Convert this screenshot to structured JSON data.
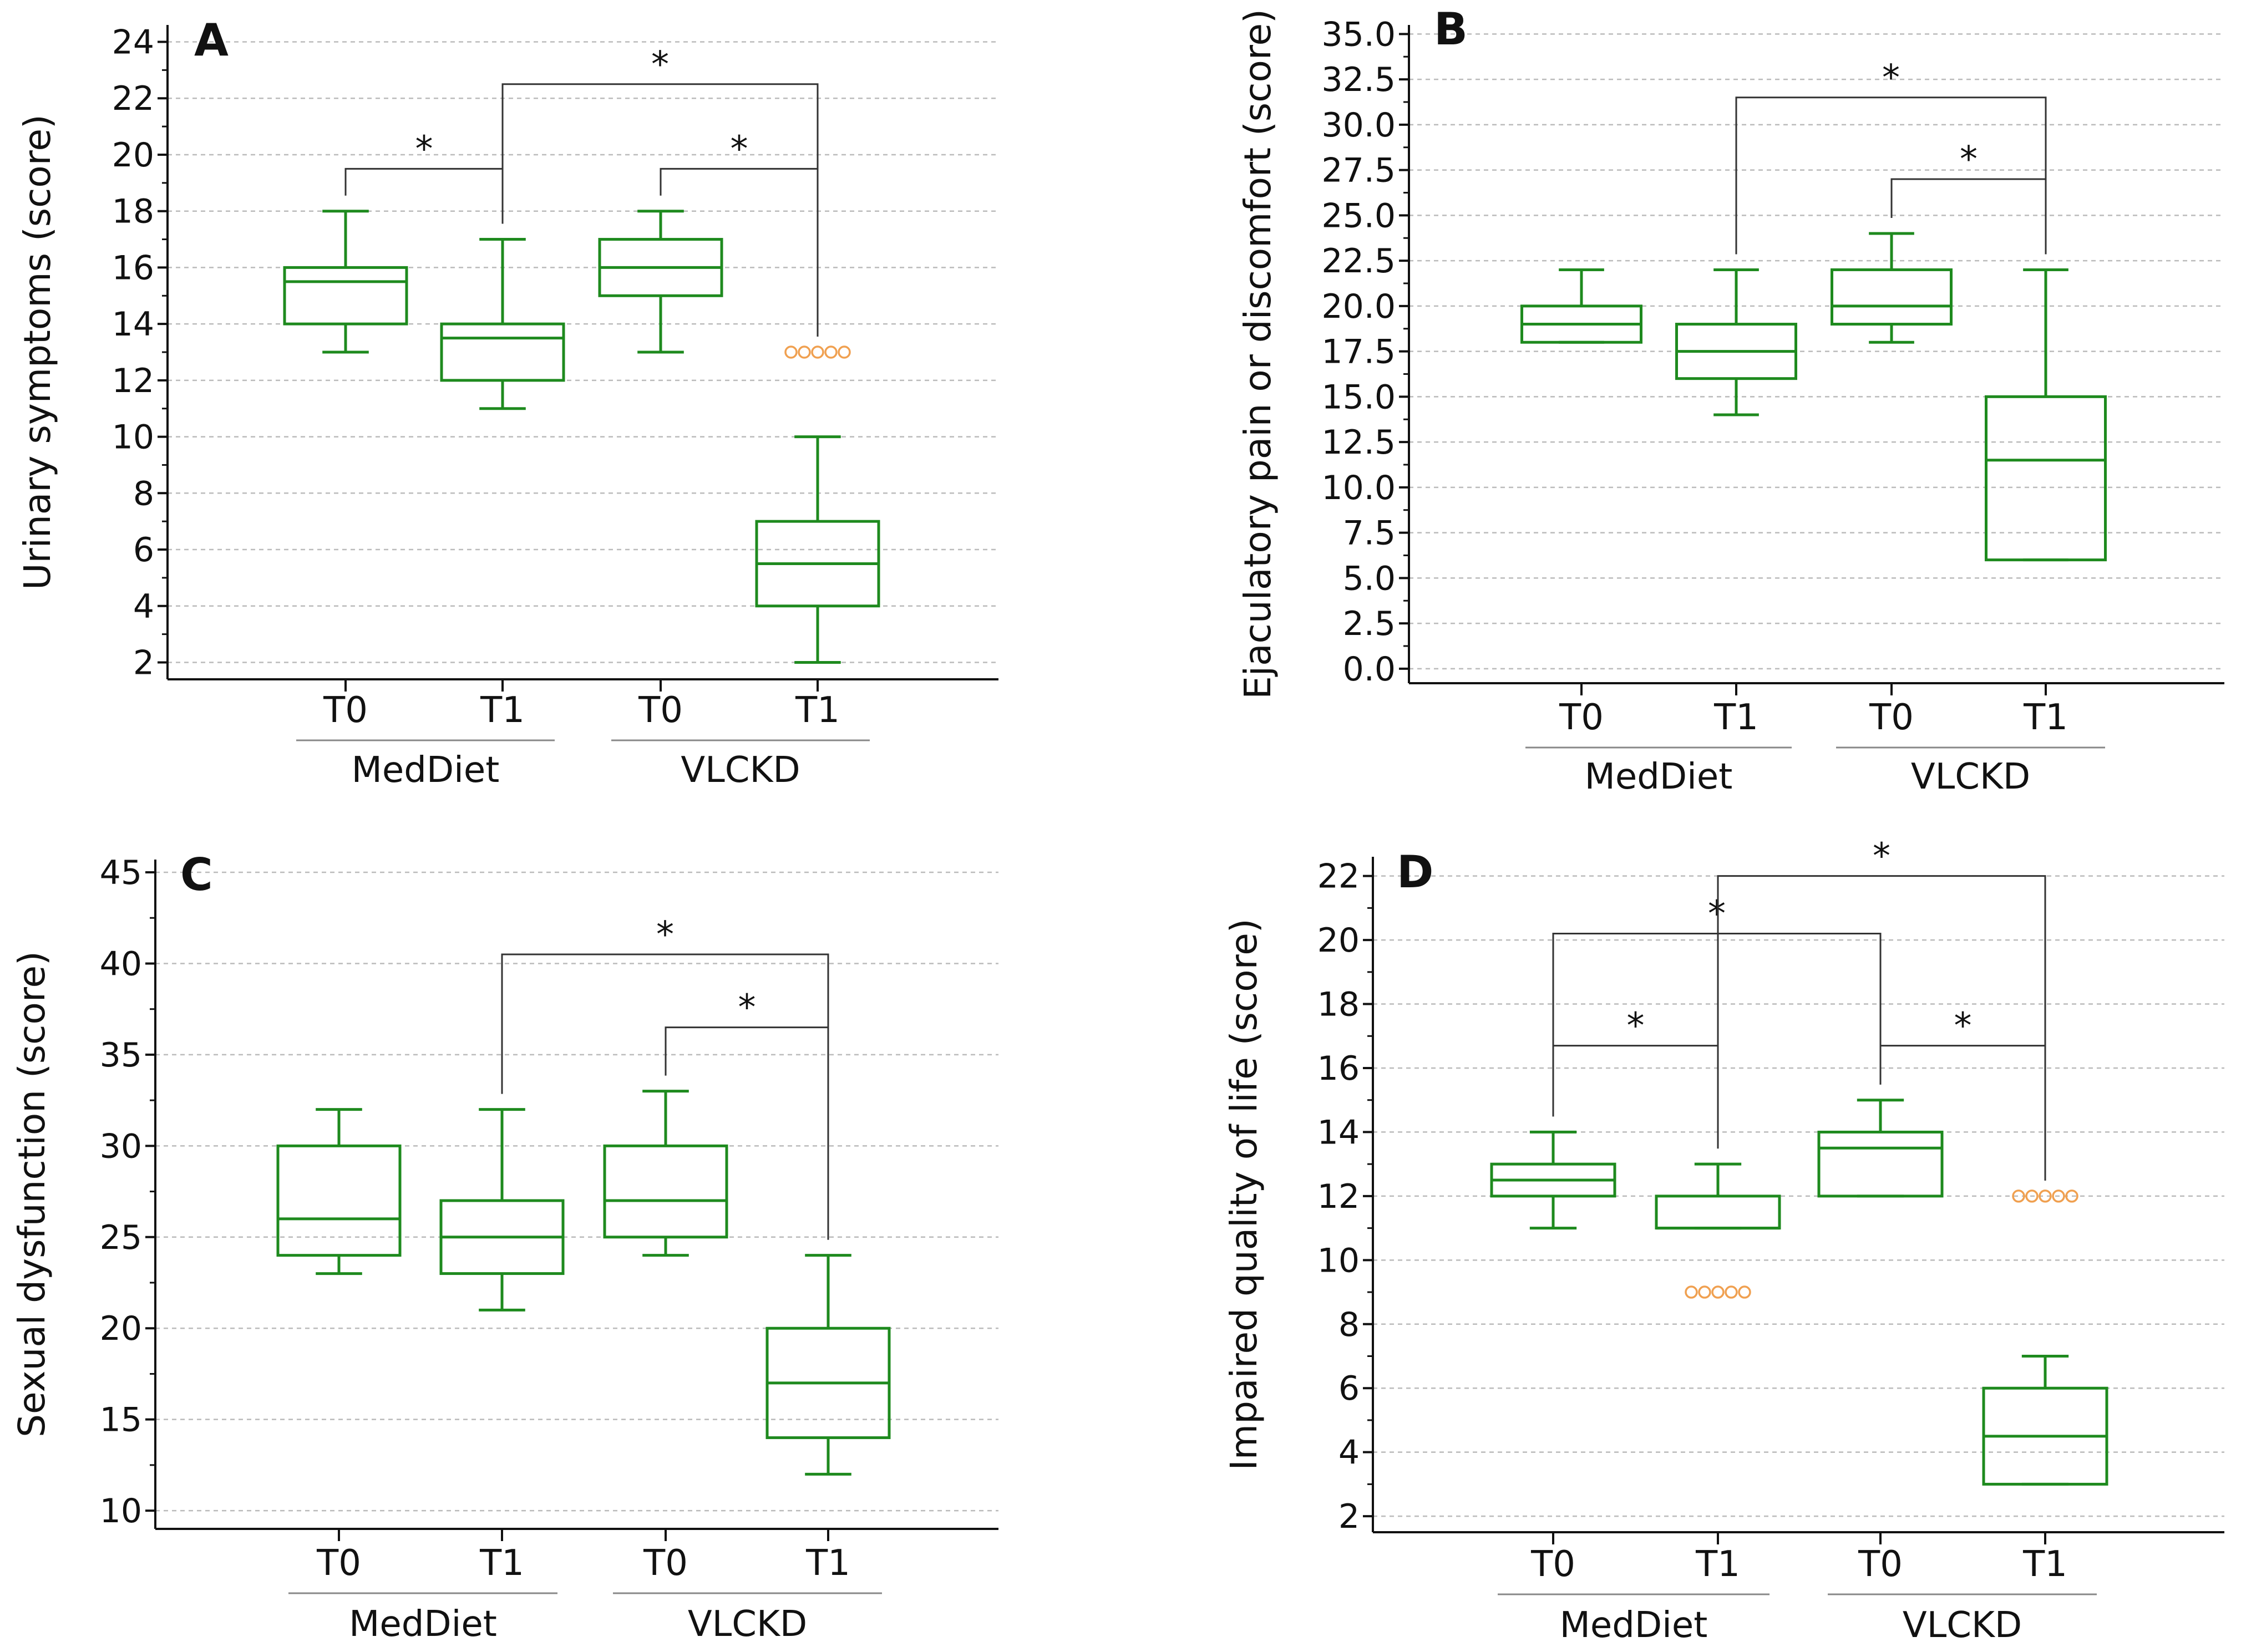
{
  "chart_data": [
    {
      "type": "box",
      "panel": "A",
      "ylabel": "Urinary symptoms (score)",
      "ylim": [
        1.4,
        24.6
      ],
      "yticks": [
        2,
        4,
        6,
        8,
        10,
        12,
        14,
        16,
        18,
        20,
        22,
        24
      ],
      "tick_labels": [
        "2",
        "4",
        "6",
        "8",
        "10",
        "12",
        "14",
        "16",
        "18",
        "20",
        "22",
        "24"
      ],
      "grid": true,
      "categories": [
        "T0",
        "T1",
        "T0",
        "T1"
      ],
      "groups": [
        {
          "name": "MedDiet",
          "members": [
            0,
            1
          ]
        },
        {
          "name": "VLCKD",
          "members": [
            2,
            3
          ]
        }
      ],
      "boxes": [
        {
          "min": 13,
          "q1": 14,
          "median": 15.5,
          "q3": 16,
          "max": 18
        },
        {
          "min": 11,
          "q1": 12,
          "median": 13.5,
          "q3": 14,
          "max": 17
        },
        {
          "min": 13,
          "q1": 15,
          "median": 16,
          "q3": 17,
          "max": 18
        },
        {
          "min": 2,
          "q1": 4,
          "median": 5.5,
          "q3": 7,
          "max": 10
        }
      ],
      "outliers": [
        {
          "box": 3,
          "value": 13,
          "count": 5
        }
      ],
      "significance": [
        {
          "from": 0,
          "to": 1,
          "label": "*",
          "y": 19.5
        },
        {
          "from": 2,
          "to": 3,
          "label": "*",
          "y": 19.5
        },
        {
          "from": 1,
          "to": 3,
          "label": "*",
          "y": 22.5
        }
      ]
    },
    {
      "type": "box",
      "panel": "B",
      "ylabel": "Ejaculatory pain or discomfort (score)",
      "ylim": [
        -0.8,
        35.5
      ],
      "yticks": [
        0,
        2.5,
        5,
        7.5,
        10,
        12.5,
        15,
        17.5,
        20,
        22.5,
        25,
        27.5,
        30,
        32.5,
        35
      ],
      "tick_labels": [
        "0.0",
        "2.5",
        "5.0",
        "7.5",
        "10.0",
        "12.5",
        "15.0",
        "17.5",
        "20.0",
        "22.5",
        "25.0",
        "27.5",
        "30.0",
        "32.5",
        "35.0"
      ],
      "grid": true,
      "categories": [
        "T0",
        "T1",
        "T0",
        "T1"
      ],
      "groups": [
        {
          "name": "MedDiet",
          "members": [
            0,
            1
          ]
        },
        {
          "name": "VLCKD",
          "members": [
            2,
            3
          ]
        }
      ],
      "boxes": [
        {
          "min": 18,
          "q1": 18,
          "median": 19,
          "q3": 20,
          "max": 22
        },
        {
          "min": 14,
          "q1": 16,
          "median": 17.5,
          "q3": 19,
          "max": 22
        },
        {
          "min": 18,
          "q1": 19,
          "median": 20,
          "q3": 22,
          "max": 24
        },
        {
          "min": 6,
          "q1": 6,
          "median": 11.5,
          "q3": 15,
          "max": 22
        }
      ],
      "outliers": [],
      "significance": [
        {
          "from": 2,
          "to": 3,
          "label": "*",
          "y": 27
        },
        {
          "from": 1,
          "to": 3,
          "label": "*",
          "y": 31.5
        }
      ]
    },
    {
      "type": "box",
      "panel": "C",
      "ylabel": "Sexual dysfunction (score)",
      "ylim": [
        9,
        45.7
      ],
      "yticks": [
        10,
        15,
        20,
        25,
        30,
        35,
        40,
        45
      ],
      "tick_labels": [
        "10",
        "15",
        "20",
        "25",
        "30",
        "35",
        "40",
        "45"
      ],
      "grid": true,
      "categories": [
        "T0",
        "T1",
        "T0",
        "T1"
      ],
      "groups": [
        {
          "name": "MedDiet",
          "members": [
            0,
            1
          ]
        },
        {
          "name": "VLCKD",
          "members": [
            2,
            3
          ]
        }
      ],
      "boxes": [
        {
          "min": 23,
          "q1": 24,
          "median": 26,
          "q3": 30,
          "max": 32
        },
        {
          "min": 21,
          "q1": 23,
          "median": 25,
          "q3": 27,
          "max": 32
        },
        {
          "min": 24,
          "q1": 25,
          "median": 27,
          "q3": 30,
          "max": 33
        },
        {
          "min": 12,
          "q1": 14,
          "median": 17,
          "q3": 20,
          "max": 24
        }
      ],
      "outliers": [],
      "significance": [
        {
          "from": 2,
          "to": 3,
          "label": "*",
          "y": 36.5
        },
        {
          "from": 1,
          "to": 3,
          "label": "*",
          "y": 40.5
        }
      ]
    },
    {
      "type": "box",
      "panel": "D",
      "ylabel": "Impaired quality of life (score)",
      "ylim": [
        1.5,
        22.6
      ],
      "yticks": [
        2,
        4,
        6,
        8,
        10,
        12,
        14,
        16,
        18,
        20,
        22
      ],
      "tick_labels": [
        "2",
        "4",
        "6",
        "8",
        "10",
        "12",
        "14",
        "16",
        "18",
        "20",
        "22"
      ],
      "grid": true,
      "categories": [
        "T0",
        "T1",
        "T0",
        "T1"
      ],
      "groups": [
        {
          "name": "MedDiet",
          "members": [
            0,
            1
          ]
        },
        {
          "name": "VLCKD",
          "members": [
            2,
            3
          ]
        }
      ],
      "boxes": [
        {
          "min": 11,
          "q1": 12,
          "median": 12.5,
          "q3": 13,
          "max": 14
        },
        {
          "min": 11,
          "q1": 11,
          "median": 11,
          "q3": 12,
          "max": 13
        },
        {
          "min": 12,
          "q1": 12,
          "median": 13.5,
          "q3": 14,
          "max": 15
        },
        {
          "min": 3,
          "q1": 3,
          "median": 4.5,
          "q3": 6,
          "max": 7
        }
      ],
      "outliers": [
        {
          "box": 1,
          "value": 9,
          "count": 5
        },
        {
          "box": 3,
          "value": 12,
          "count": 5
        }
      ],
      "significance": [
        {
          "from": 0,
          "to": 1,
          "label": "*",
          "y": 16.7
        },
        {
          "from": 2,
          "to": 3,
          "label": "*",
          "y": 16.7
        },
        {
          "from": 0,
          "to": 2,
          "label": "*",
          "y": 20.2
        },
        {
          "from": 1,
          "to": 3,
          "label": "*",
          "y": 22.0
        }
      ]
    }
  ],
  "colors": {
    "box": "#1e8a1e",
    "outlier": "#f0a050",
    "grid": "#bbbbbb",
    "axis": "#111111",
    "bracket": "#333333",
    "group_rule": "#888888"
  }
}
